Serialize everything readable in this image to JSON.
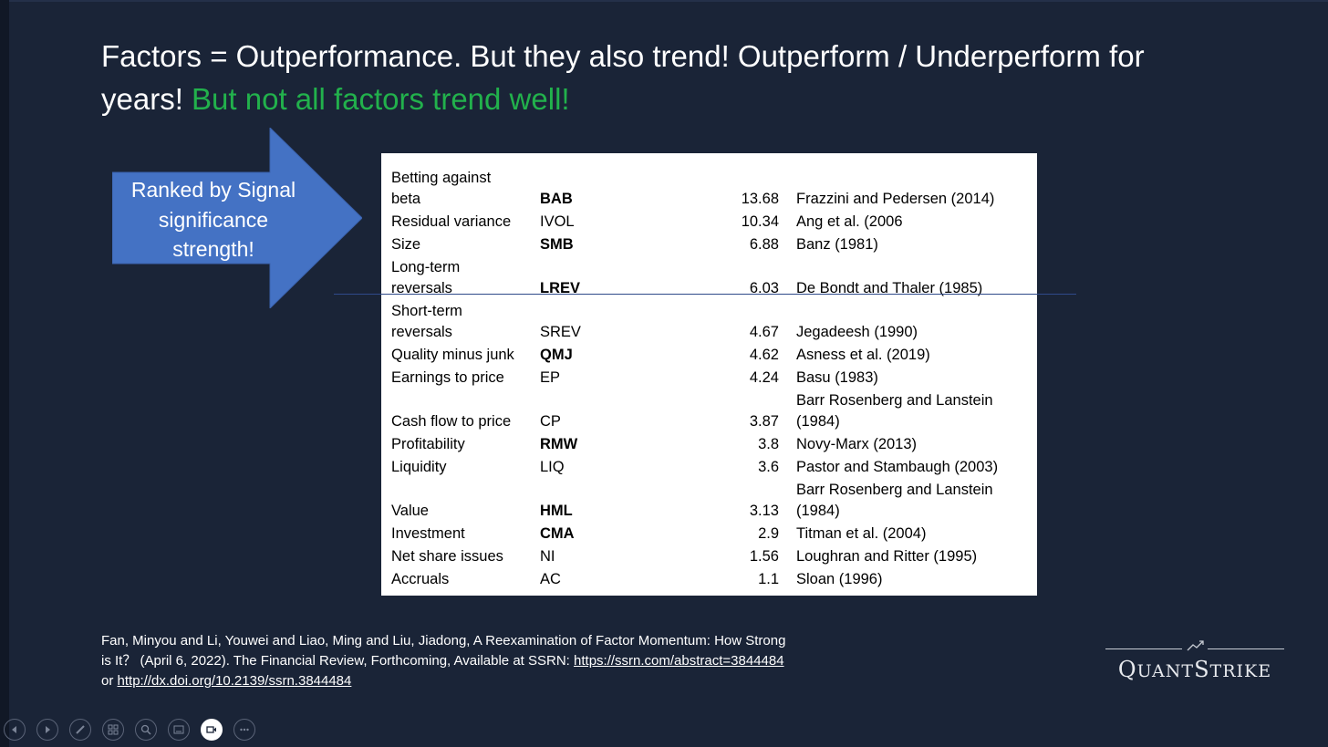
{
  "title": {
    "part1": "Factors = Outperformance. But they also trend! Outperform / Underperform for years!",
    "part2": "But not all factors trend well!",
    "accent_color": "#22b14c"
  },
  "arrow": {
    "lines": [
      "Ranked by Signal",
      "significance",
      "strength!"
    ],
    "color": "#4472c4"
  },
  "table": {
    "rows": [
      {
        "name": "Betting against beta",
        "name_lines": [
          "Betting against",
          "beta"
        ],
        "abbr": "BAB",
        "bold": true,
        "value": "13.68",
        "ref_lines": [
          "Frazzini and Pedersen (2014)"
        ]
      },
      {
        "name_lines": [
          "Residual variance"
        ],
        "abbr": "IVOL",
        "bold": false,
        "value": "10.34",
        "ref_lines": [
          "Ang et al. (2006"
        ]
      },
      {
        "name_lines": [
          "Size"
        ],
        "abbr": "SMB",
        "bold": true,
        "value": "6.88",
        "ref_lines": [
          "Banz (1981)"
        ]
      },
      {
        "name_lines": [
          "Long-term",
          "reversals"
        ],
        "abbr": "LREV",
        "bold": true,
        "value": "6.03",
        "ref_lines": [
          "De Bondt and Thaler (1985)"
        ]
      },
      {
        "name_lines": [
          "Short-term",
          "reversals"
        ],
        "abbr": "SREV",
        "bold": false,
        "value": "4.67",
        "ref_lines": [
          "Jegadeesh (1990)"
        ]
      },
      {
        "name_lines": [
          "Quality minus junk"
        ],
        "abbr": "QMJ",
        "bold": true,
        "value": "4.62",
        "ref_lines": [
          "Asness et al. (2019)"
        ]
      },
      {
        "name_lines": [
          "Earnings to price"
        ],
        "abbr": "EP",
        "bold": false,
        "value": "4.24",
        "ref_lines": [
          "Basu (1983)"
        ]
      },
      {
        "name_lines": [
          "Cash flow to price"
        ],
        "abbr": "CP",
        "bold": false,
        "value": "3.87",
        "ref_lines": [
          "Barr Rosenberg and Lanstein",
          "(1984)"
        ]
      },
      {
        "name_lines": [
          "Profitability"
        ],
        "abbr": "RMW",
        "bold": true,
        "value": "3.8",
        "ref_lines": [
          "Novy-Marx (2013)"
        ]
      },
      {
        "name_lines": [
          "Liquidity"
        ],
        "abbr": "LIQ",
        "bold": false,
        "value": "3.6",
        "ref_lines": [
          "Pastor and Stambaugh (2003)"
        ]
      },
      {
        "name_lines": [
          "Value"
        ],
        "abbr": "HML",
        "bold": true,
        "value": "3.13",
        "ref_lines": [
          "Barr Rosenberg and Lanstein",
          "(1984)"
        ]
      },
      {
        "name_lines": [
          "Investment"
        ],
        "abbr": "CMA",
        "bold": true,
        "value": "2.9",
        "ref_lines": [
          "Titman et al. (2004)"
        ]
      },
      {
        "name_lines": [
          "Net share issues"
        ],
        "abbr": "NI",
        "bold": false,
        "value": "1.56",
        "ref_lines": [
          "Loughran and Ritter (1995)"
        ]
      },
      {
        "name_lines": [
          "Accruals"
        ],
        "abbr": "AC",
        "bold": false,
        "value": "1.1",
        "ref_lines": [
          "Sloan (1996)"
        ]
      }
    ]
  },
  "citation": {
    "text": "Fan, Minyou and Li, Youwei and Liao, Ming and Liu, Jiadong, A Reexamination of Factor Momentum: How Strong is It？ (April 6, 2022). The Financial Review, Forthcoming, Available at SSRN: ",
    "link1": "https://ssrn.com/abstract=3844484",
    "between": " or ",
    "link2": "http://dx.doi.org/10.2139/ssrn.3844484"
  },
  "logo": {
    "first_big": "Q",
    "first_rest": "UANT",
    "second_big": "S",
    "second_rest": "TRIKE"
  },
  "toolbar": {
    "buttons": [
      "previous-icon",
      "next-icon",
      "pen-icon",
      "slides-grid-icon",
      "zoom-icon",
      "subtitles-icon",
      "camera-icon",
      "more-icon"
    ]
  }
}
